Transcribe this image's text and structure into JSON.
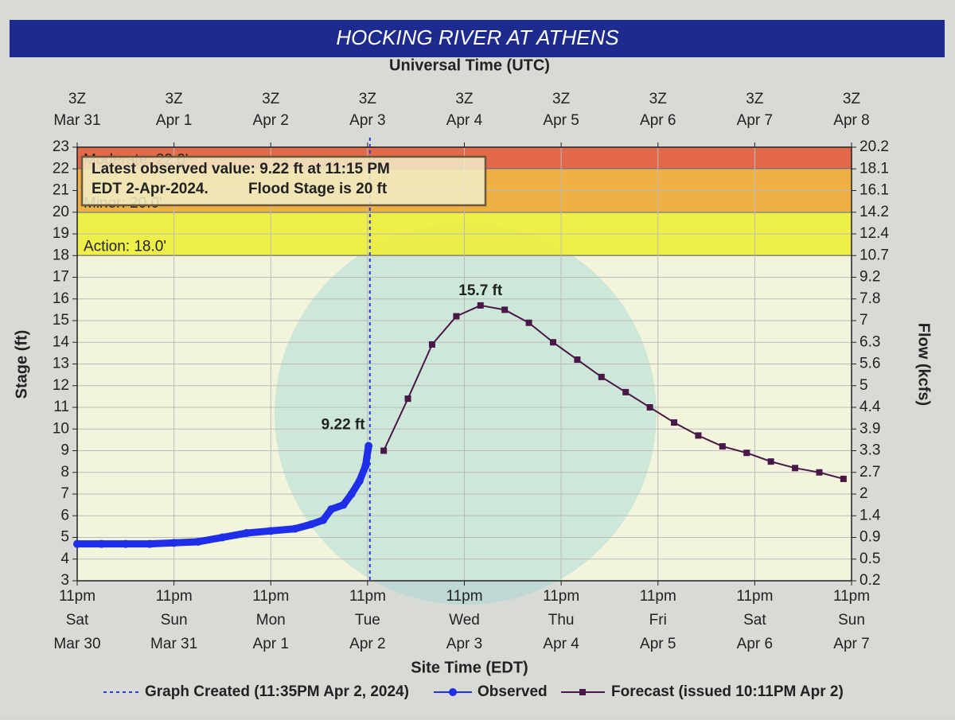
{
  "chart_data": {
    "type": "line",
    "title": "HOCKING RIVER AT ATHENS",
    "x2_label": "Universal Time (UTC)",
    "x_label": "Site Time (EDT)",
    "y_label": "Stage (ft)",
    "y2_label": "Flow (kcfs)",
    "xlim": [
      0,
      192
    ],
    "xticks": [
      {
        "value": 0,
        "label": [
          "11pm",
          "Sat",
          "Mar 30"
        ]
      },
      {
        "value": 24,
        "label": [
          "11pm",
          "Sun",
          "Mar 31"
        ]
      },
      {
        "value": 48,
        "label": [
          "11pm",
          "Mon",
          "Apr 1"
        ]
      },
      {
        "value": 72,
        "label": [
          "11pm",
          "Tue",
          "Apr 2"
        ]
      },
      {
        "value": 96,
        "label": [
          "11pm",
          "Wed",
          "Apr 3"
        ]
      },
      {
        "value": 120,
        "label": [
          "11pm",
          "Thu",
          "Apr 4"
        ]
      },
      {
        "value": 144,
        "label": [
          "11pm",
          "Fri",
          "Apr 5"
        ]
      },
      {
        "value": 168,
        "label": [
          "11pm",
          "Sat",
          "Apr 6"
        ]
      },
      {
        "value": 192,
        "label": [
          "11pm",
          "Sun",
          "Apr 7"
        ]
      }
    ],
    "x2ticks": [
      {
        "value": 0,
        "label": [
          "3Z",
          "Mar 31"
        ]
      },
      {
        "value": 24,
        "label": [
          "3Z",
          "Apr 1"
        ]
      },
      {
        "value": 48,
        "label": [
          "3Z",
          "Apr 2"
        ]
      },
      {
        "value": 72,
        "label": [
          "3Z",
          "Apr 3"
        ]
      },
      {
        "value": 96,
        "label": [
          "3Z",
          "Apr 4"
        ]
      },
      {
        "value": 120,
        "label": [
          "3Z",
          "Apr 5"
        ]
      },
      {
        "value": 144,
        "label": [
          "3Z",
          "Apr 6"
        ]
      },
      {
        "value": 168,
        "label": [
          "3Z",
          "Apr 7"
        ]
      },
      {
        "value": 192,
        "label": [
          "3Z",
          "Apr 8"
        ]
      }
    ],
    "ylim": [
      3,
      23
    ],
    "yticks": [
      3,
      4,
      5,
      6,
      7,
      8,
      9,
      10,
      11,
      12,
      13,
      14,
      15,
      16,
      17,
      18,
      19,
      20,
      21,
      22,
      23
    ],
    "y2lim": [
      0.2,
      20.2
    ],
    "y2ticks": [
      0.2,
      0.5,
      0.9,
      1.4,
      2.0,
      2.7,
      3.3,
      3.9,
      4.4,
      5.0,
      5.6,
      6.3,
      7.0,
      7.8,
      9.2,
      10.7,
      12.4,
      14.2,
      16.1,
      18.1,
      20.2
    ],
    "grid": true,
    "flood_stages": [
      {
        "label": "Action: 18.0'",
        "value": 18,
        "color": "#eeee3a"
      },
      {
        "label": "Minor: 20.0'",
        "value": 20,
        "color": "#f0a832"
      },
      {
        "label": "Moderate: 22.0'",
        "value": 22,
        "color": "#e05a3a"
      }
    ],
    "annotation": [
      "Latest observed value: 9.22 ft at 11:15 PM",
      "EDT 2-Apr-2024.",
      "Flood Stage is 20 ft"
    ],
    "graph_created": {
      "label": "Graph Created (11:35PM Apr 2, 2024)",
      "x": 72.58,
      "color": "#2a3ad8"
    },
    "series": [
      {
        "name": "Observed",
        "color": "#1f2ee8",
        "x": [
          0,
          6,
          12,
          18,
          24,
          30,
          36,
          42,
          48,
          54,
          58,
          61,
          63,
          66,
          68,
          70,
          71.5,
          72.25
        ],
        "values": [
          4.7,
          4.7,
          4.7,
          4.7,
          4.75,
          4.8,
          5.0,
          5.2,
          5.3,
          5.4,
          5.6,
          5.8,
          6.3,
          6.5,
          7.0,
          7.6,
          8.3,
          9.22
        ],
        "value_labels": [
          null,
          null,
          null,
          null,
          null,
          null,
          null,
          null,
          null,
          null,
          null,
          null,
          null,
          null,
          null,
          null,
          null,
          "9.22 ft"
        ]
      },
      {
        "name": "Forecast (issued 10:11PM Apr 2)",
        "color": "#4a1848",
        "x": [
          76,
          82,
          88,
          94,
          100,
          106,
          112,
          118,
          124,
          130,
          136,
          142,
          148,
          154,
          160,
          166,
          172,
          178,
          184,
          190
        ],
        "values": [
          9.0,
          11.4,
          13.9,
          15.2,
          15.7,
          15.5,
          14.9,
          14.0,
          13.2,
          12.4,
          11.7,
          11.0,
          10.3,
          9.7,
          9.2,
          8.9,
          8.5,
          8.2,
          8.0,
          7.7
        ],
        "value_labels": [
          null,
          null,
          null,
          null,
          "15.7 ft",
          null,
          null,
          null,
          null,
          null,
          null,
          null,
          null,
          null,
          null,
          null,
          null,
          null,
          null,
          null
        ]
      }
    ]
  }
}
